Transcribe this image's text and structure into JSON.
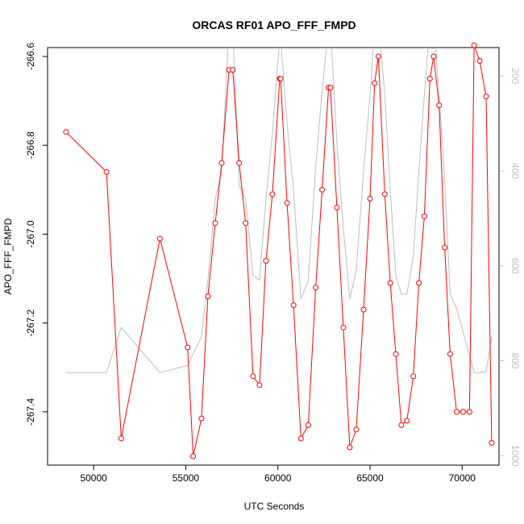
{
  "chart_data": {
    "type": "line",
    "title": "ORCAS RF01 APO_FFF_FMPD",
    "xlabel": "UTC Seconds",
    "ylabel": "APO_FFF_FMPD",
    "xlim": [
      47500,
      72000
    ],
    "ylim": [
      -267.52,
      -266.58
    ],
    "y2lim": [
      1020,
      140
    ],
    "x_ticks": [
      50000,
      55000,
      60000,
      65000,
      70000
    ],
    "x_tick_labels": [
      "50000",
      "55000",
      "60000",
      "65000",
      "70000"
    ],
    "y_ticks": [
      -266.6,
      -266.8,
      -267.0,
      -267.2,
      -267.4
    ],
    "y_tick_labels": [
      "-266.6",
      "-266.8",
      "-267.0",
      "-267.2",
      "-267.4"
    ],
    "y2_ticks": [
      200,
      400,
      600,
      800,
      1000
    ],
    "y2_tick_labels": [
      "200",
      "400",
      "600",
      "800",
      "1000"
    ],
    "series": [
      {
        "role": "primary",
        "color": "#ff0000",
        "marker": "open-circle",
        "x": [
          48500,
          50700,
          51500,
          53600,
          55100,
          55400,
          55850,
          56200,
          56600,
          56950,
          57350,
          57550,
          57900,
          58250,
          58650,
          59000,
          59350,
          59700,
          60100,
          60150,
          60500,
          60850,
          61250,
          61650,
          62050,
          62400,
          62750,
          62850,
          63200,
          63550,
          63900,
          64250,
          64650,
          65000,
          65250,
          65450,
          65800,
          66100,
          66400,
          66700,
          67000,
          67350,
          67650,
          67950,
          68250,
          68450,
          68750,
          69050,
          69350,
          69700,
          70050,
          70400,
          70650,
          70950,
          71300,
          71600
        ],
        "y": [
          -266.77,
          -266.86,
          -267.46,
          -267.01,
          -267.255,
          -267.5,
          -267.415,
          -267.14,
          -266.975,
          -266.84,
          -266.63,
          -266.63,
          -266.84,
          -266.975,
          -267.32,
          -267.34,
          -267.06,
          -266.91,
          -266.65,
          -266.65,
          -266.93,
          -267.16,
          -267.46,
          -267.43,
          -267.12,
          -266.9,
          -266.67,
          -266.67,
          -266.94,
          -267.21,
          -267.48,
          -267.44,
          -267.17,
          -266.92,
          -266.66,
          -266.6,
          -266.91,
          -267.11,
          -267.27,
          -267.43,
          -267.42,
          -267.32,
          -267.11,
          -266.96,
          -266.65,
          -266.6,
          -266.71,
          -267.03,
          -267.27,
          -267.4,
          -267.4,
          -267.4,
          -266.575,
          -266.61,
          -266.69,
          -267.47
        ]
      },
      {
        "role": "secondary",
        "axis": "right",
        "color": "#bebebe",
        "marker": "none",
        "x": [
          48500,
          50700,
          51500,
          53600,
          55100,
          55400,
          55850,
          56200,
          56600,
          56950,
          57350,
          57550,
          57900,
          58250,
          58650,
          59000,
          59350,
          59700,
          60100,
          60150,
          60500,
          60850,
          61250,
          61650,
          62050,
          62400,
          62750,
          62850,
          63200,
          63550,
          63900,
          64250,
          64650,
          65000,
          65250,
          65450,
          65800,
          66100,
          66400,
          66700,
          67000,
          67350,
          67650,
          67950,
          68250,
          68450,
          68750,
          69050,
          69350,
          69700,
          70050,
          70400,
          70650,
          70950,
          71300,
          71600
        ],
        "y": [
          825,
          825,
          730,
          825,
          810,
          785,
          750,
          630,
          460,
          400,
          90,
          90,
          430,
          460,
          620,
          630,
          460,
          320,
          120,
          120,
          300,
          440,
          670,
          630,
          390,
          230,
          95,
          95,
          340,
          520,
          670,
          610,
          400,
          240,
          100,
          80,
          240,
          440,
          620,
          660,
          660,
          580,
          400,
          240,
          90,
          80,
          240,
          420,
          660,
          690,
          740,
          790,
          825,
          825,
          823,
          750
        ]
      }
    ]
  }
}
